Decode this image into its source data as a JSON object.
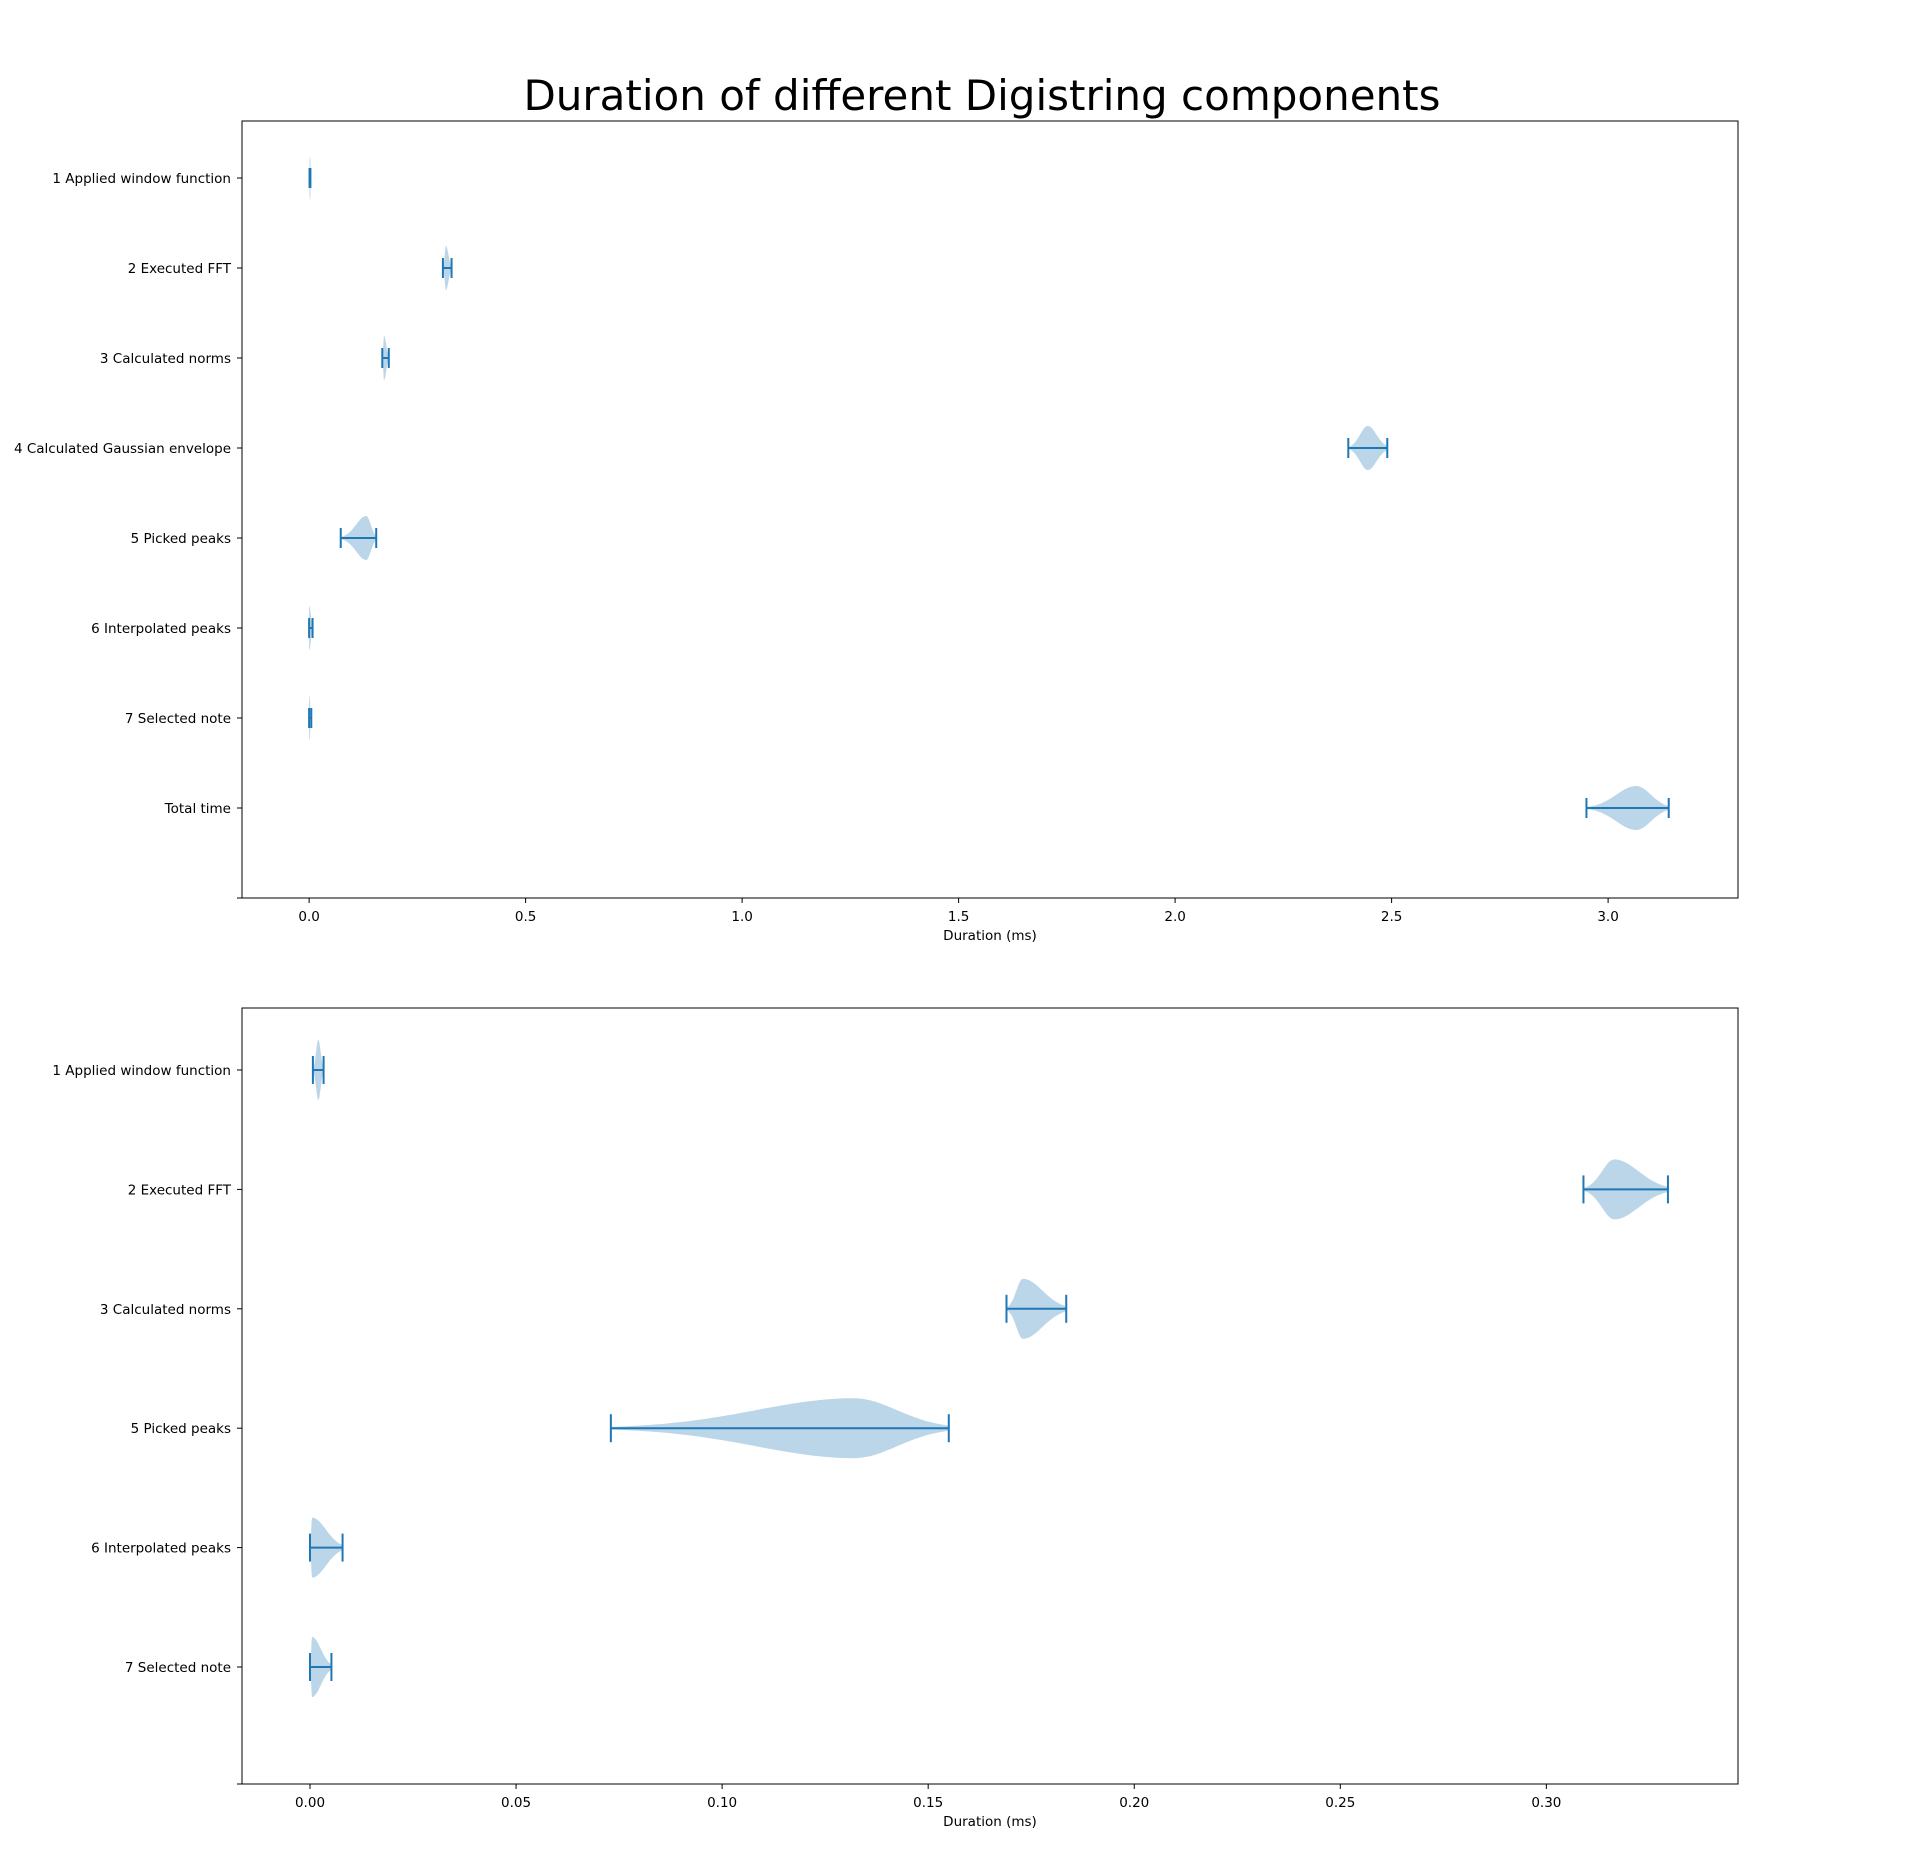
{
  "title": "Duration of different Digistring components",
  "colors": {
    "line": "#1f77b4",
    "body": "#1f77b4",
    "body_opacity": 0.3
  },
  "chart_data": [
    {
      "type": "violin",
      "orientation": "horizontal",
      "title": "Duration of different Digistring components",
      "xlabel": "Duration (ms)",
      "ylabel": "",
      "xlim": [
        -0.155,
        3.3
      ],
      "xticks": [
        0.0,
        0.5,
        1.0,
        1.5,
        2.0,
        2.5,
        3.0
      ],
      "xtick_labels": [
        "0.0",
        "0.5",
        "1.0",
        "1.5",
        "2.0",
        "2.5",
        "3.0"
      ],
      "categories": [
        "1 Applied window function",
        "2 Executed FFT",
        "3 Calculated norms",
        "4 Calculated Gaussian envelope",
        "5 Picked peaks",
        "6 Interpolated peaks",
        "7 Selected note",
        "Total time"
      ],
      "series": [
        {
          "category": "1 Applied window function",
          "min": 0.001,
          "max": 0.003,
          "peak": 0.002,
          "skew": 0
        },
        {
          "category": "2 Executed FFT",
          "min": 0.309,
          "max": 0.329,
          "peak": 0.316,
          "skew": 0.3
        },
        {
          "category": "3 Calculated norms",
          "min": 0.169,
          "max": 0.184,
          "peak": 0.173,
          "skew": 0.1
        },
        {
          "category": "4 Calculated Gaussian envelope",
          "min": 2.4,
          "max": 2.49,
          "peak": 2.445,
          "skew": 0.1
        },
        {
          "category": "5 Picked peaks",
          "min": 0.073,
          "max": 0.155,
          "peak": 0.132,
          "skew": 0.9
        },
        {
          "category": "6 Interpolated peaks",
          "min": 0.0,
          "max": 0.008,
          "peak": 0.0005,
          "skew": 0.1
        },
        {
          "category": "7 Selected note",
          "min": 0.0,
          "max": 0.005,
          "peak": 0.0005,
          "skew": 0.1
        },
        {
          "category": "Total time",
          "min": 2.95,
          "max": 3.14,
          "peak": 3.065,
          "skew": 0.5
        }
      ]
    },
    {
      "type": "violin",
      "orientation": "horizontal",
      "title": "",
      "xlabel": "Duration (ms)",
      "ylabel": "",
      "xlim": [
        -0.0165,
        0.3465
      ],
      "xticks": [
        0.0,
        0.05,
        0.1,
        0.15,
        0.2,
        0.25,
        0.3
      ],
      "xtick_labels": [
        "0.00",
        "0.05",
        "0.10",
        "0.15",
        "0.20",
        "0.25",
        "0.30"
      ],
      "categories": [
        "1 Applied window function",
        "2 Executed FFT",
        "3 Calculated norms",
        "5 Picked peaks",
        "6 Interpolated peaks",
        "7 Selected note"
      ],
      "series": [
        {
          "category": "1 Applied window function",
          "min": 0.0007,
          "max": 0.0033,
          "peak": 0.002,
          "skew": 0
        },
        {
          "category": "2 Executed FFT",
          "min": 0.309,
          "max": 0.3295,
          "peak": 0.3165,
          "skew": 0.35
        },
        {
          "category": "3 Calculated norms",
          "min": 0.169,
          "max": 0.1835,
          "peak": 0.173,
          "skew": 0.1
        },
        {
          "category": "5 Picked peaks",
          "min": 0.073,
          "max": 0.155,
          "peak": 0.132,
          "skew": 0.9
        },
        {
          "category": "6 Interpolated peaks",
          "min": 0.0,
          "max": 0.0079,
          "peak": 0.0005,
          "skew": 0.1
        },
        {
          "category": "7 Selected note",
          "min": 0.0,
          "max": 0.0052,
          "peak": 0.0005,
          "skew": 0.1
        }
      ]
    }
  ]
}
